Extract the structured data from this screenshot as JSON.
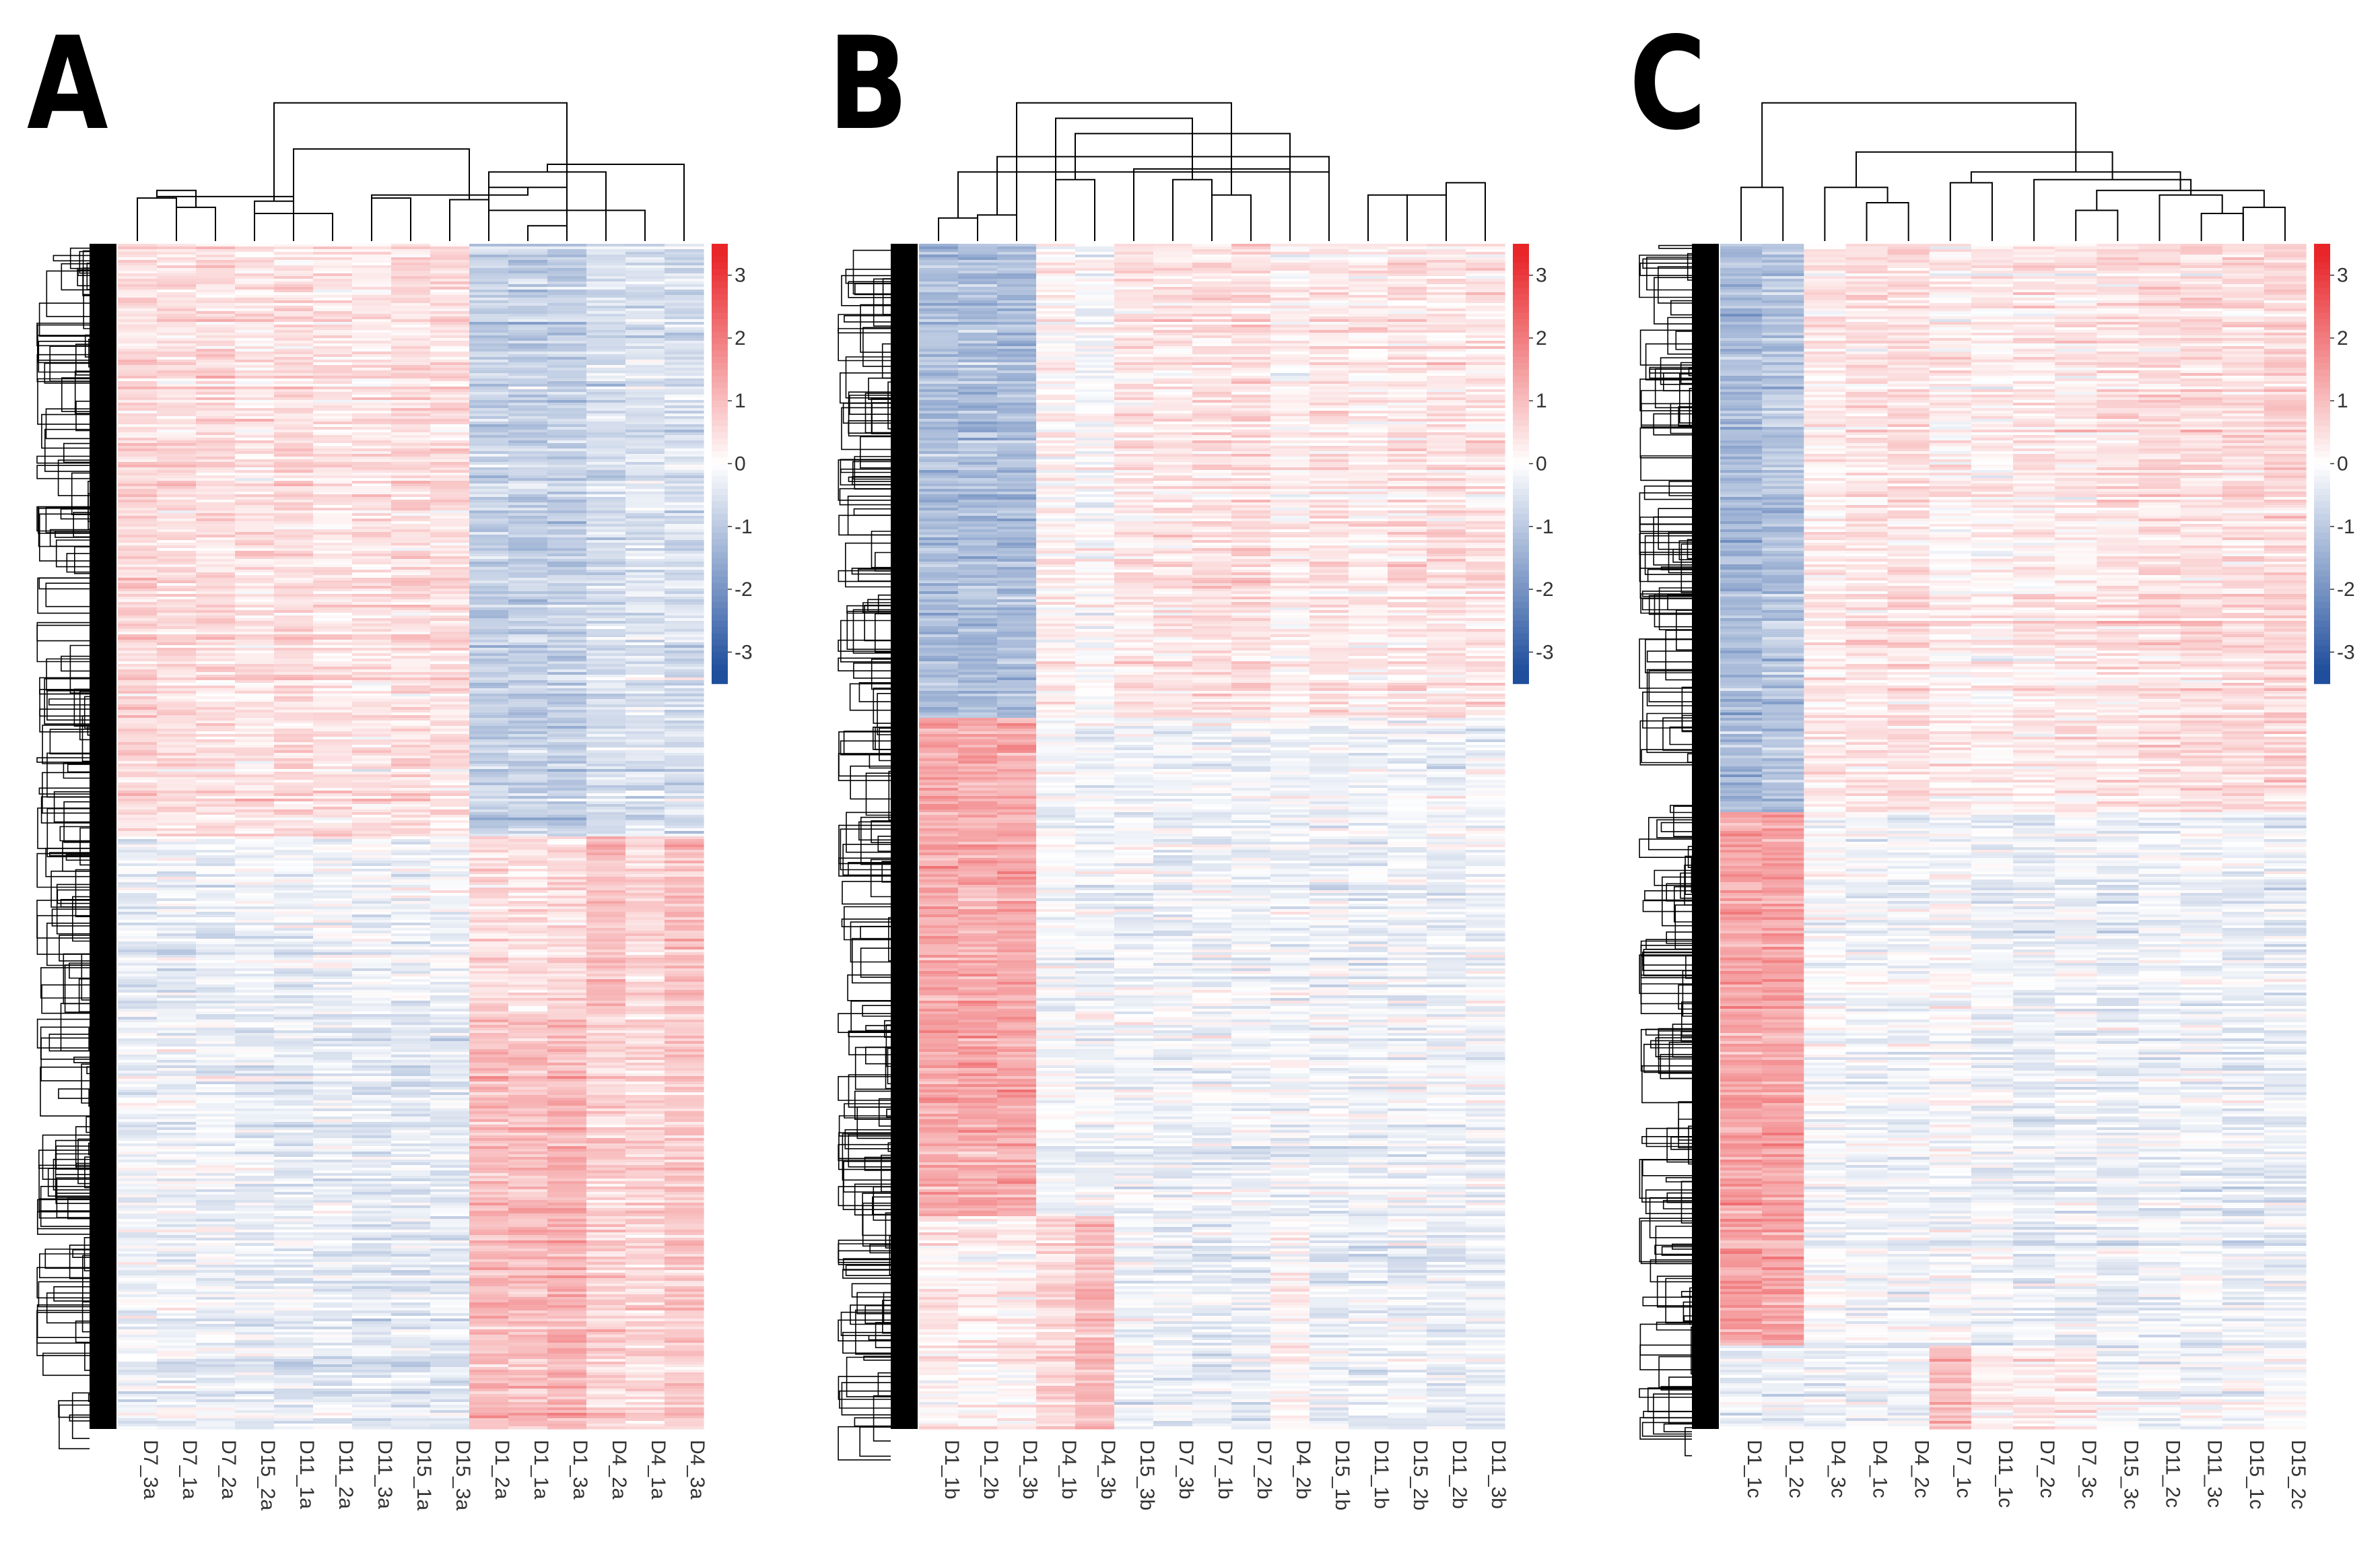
{
  "figure": {
    "panels": [
      {
        "id": "A",
        "letter": "A"
      },
      {
        "id": "B",
        "letter": "B"
      },
      {
        "id": "C",
        "letter": "C"
      }
    ]
  },
  "colors": {
    "low": "#1f4e9c",
    "mid": "#ffffff",
    "high": "#e8262a"
  },
  "chart_data": [
    {
      "type": "heatmap",
      "panel": "A",
      "columns": [
        "D7_3a",
        "D7_1a",
        "D7_2a",
        "D15_2a",
        "D11_1a",
        "D11_2a",
        "D11_3a",
        "D15_1a",
        "D15_3a",
        "D1_2a",
        "D1_1a",
        "D1_3a",
        "D4_2a",
        "D4_1a",
        "D4_3a"
      ],
      "colorbar": {
        "ticks": [
          3,
          2,
          1,
          0,
          -1,
          -2,
          -3
        ],
        "range": [
          -3.5,
          3.5
        ]
      },
      "row_blocks": [
        {
          "fraction": 0.5,
          "means": [
            0.6,
            0.5,
            0.5,
            0.4,
            0.5,
            0.4,
            0.4,
            0.5,
            0.5,
            -0.9,
            -0.9,
            -0.9,
            -0.6,
            -0.5,
            -0.6
          ]
        },
        {
          "fraction": 0.15,
          "means": [
            -0.3,
            -0.3,
            -0.3,
            -0.2,
            -0.3,
            -0.2,
            -0.2,
            -0.2,
            -0.2,
            0.5,
            0.4,
            0.5,
            0.9,
            0.6,
            1.0
          ]
        },
        {
          "fraction": 0.35,
          "means": [
            -0.2,
            -0.2,
            -0.2,
            -0.3,
            -0.4,
            -0.3,
            -0.4,
            -0.4,
            -0.4,
            1.0,
            1.0,
            1.1,
            0.7,
            0.6,
            0.8
          ]
        }
      ],
      "column_dendrogram": [
        [
          0,
          1,
          0.28
        ],
        [
          1,
          2,
          0.22
        ],
        [
          3,
          4,
          0.26
        ],
        [
          3,
          5,
          0.18
        ],
        [
          8,
          9,
          0.27
        ],
        [
          10,
          11,
          0.1
        ],
        [
          9,
          11,
          0.35
        ],
        [
          9,
          12,
          0.45
        ],
        [
          9,
          13,
          0.2
        ],
        [
          15,
          16,
          0.33
        ],
        [
          15,
          18,
          0.29
        ],
        [
          18,
          19,
          0.6
        ],
        [
          6,
          7,
          0.28
        ],
        [
          6,
          21,
          0.3
        ],
        [
          14,
          22,
          0.5
        ],
        [
          17,
          23,
          0.9
        ]
      ]
    },
    {
      "type": "heatmap",
      "panel": "B",
      "columns": [
        "D1_1b",
        "D1_2b",
        "D1_3b",
        "D4_1b",
        "D4_3b",
        "D15_3b",
        "D7_3b",
        "D7_1b",
        "D7_2b",
        "D4_2b",
        "D15_1b",
        "D11_1b",
        "D15_2b",
        "D11_2b",
        "D11_3b"
      ],
      "colorbar": {
        "ticks": [
          3,
          2,
          1,
          0,
          -1,
          -2,
          -3
        ],
        "range": [
          -3.5,
          3.5
        ]
      },
      "row_blocks": [
        {
          "fraction": 0.4,
          "means": [
            -1.2,
            -1.2,
            -1.2,
            0.2,
            0.0,
            0.4,
            0.4,
            0.5,
            0.5,
            0.2,
            0.4,
            0.3,
            0.4,
            0.4,
            0.4
          ]
        },
        {
          "fraction": 0.42,
          "means": [
            1.3,
            1.3,
            1.3,
            -0.1,
            -0.2,
            -0.2,
            -0.2,
            -0.2,
            -0.2,
            -0.2,
            -0.2,
            -0.2,
            -0.2,
            -0.2,
            -0.2
          ]
        },
        {
          "fraction": 0.18,
          "means": [
            0.2,
            0.2,
            0.2,
            0.6,
            1.0,
            -0.2,
            -0.3,
            -0.3,
            -0.3,
            0.1,
            -0.3,
            -0.3,
            -0.3,
            -0.3,
            -0.3
          ]
        }
      ],
      "column_dendrogram": [
        [
          0,
          1,
          0.15
        ],
        [
          1,
          2,
          0.17
        ],
        [
          3,
          4,
          0.4
        ],
        [
          6,
          7,
          0.4
        ],
        [
          7,
          8,
          0.3
        ],
        [
          5,
          9,
          0.47
        ],
        [
          11,
          12,
          0.3
        ],
        [
          12,
          13,
          0.3
        ],
        [
          13,
          14,
          0.38
        ],
        [
          10,
          15,
          0.45
        ],
        [
          10,
          16,
          0.55
        ],
        [
          9,
          17,
          0.7
        ],
        [
          3,
          18,
          0.8
        ],
        [
          2,
          19,
          0.9
        ]
      ]
    },
    {
      "type": "heatmap",
      "panel": "C",
      "columns": [
        "D1_1c",
        "D1_2c",
        "D4_3c",
        "D4_1c",
        "D4_2c",
        "D7_1c",
        "D11_1c",
        "D7_2c",
        "D7_3c",
        "D15_3c",
        "D11_2c",
        "D11_3c",
        "D15_1c",
        "D15_2c"
      ],
      "colorbar": {
        "ticks": [
          3,
          2,
          1,
          0,
          -1,
          -2,
          -3
        ],
        "range": [
          -3.5,
          3.5
        ]
      },
      "row_blocks": [
        {
          "fraction": 0.48,
          "means": [
            -1.3,
            -1.1,
            0.3,
            0.4,
            0.5,
            0.2,
            0.2,
            0.3,
            0.3,
            0.4,
            0.5,
            0.5,
            0.5,
            0.6
          ]
        },
        {
          "fraction": 0.45,
          "means": [
            1.4,
            1.4,
            -0.1,
            -0.2,
            -0.2,
            -0.1,
            -0.2,
            -0.3,
            -0.2,
            -0.3,
            -0.2,
            -0.2,
            -0.3,
            -0.3
          ]
        },
        {
          "fraction": 0.07,
          "means": [
            -0.3,
            -0.3,
            -0.3,
            -0.2,
            -0.2,
            1.0,
            0.2,
            0.3,
            0.3,
            -0.1,
            -0.1,
            -0.2,
            -0.1,
            -0.1
          ]
        }
      ],
      "column_dendrogram": [
        [
          0,
          1,
          0.35
        ],
        [
          3,
          4,
          0.25
        ],
        [
          2,
          15,
          0.35
        ],
        [
          5,
          6,
          0.38
        ],
        [
          8,
          9,
          0.2
        ],
        [
          11,
          12,
          0.18
        ],
        [
          12,
          13,
          0.22
        ],
        [
          10,
          19,
          0.3
        ],
        [
          18,
          20,
          0.33
        ],
        [
          7,
          21,
          0.4
        ],
        [
          17,
          22,
          0.45
        ],
        [
          16,
          23,
          0.58
        ],
        [
          14,
          24,
          0.9
        ]
      ]
    }
  ]
}
